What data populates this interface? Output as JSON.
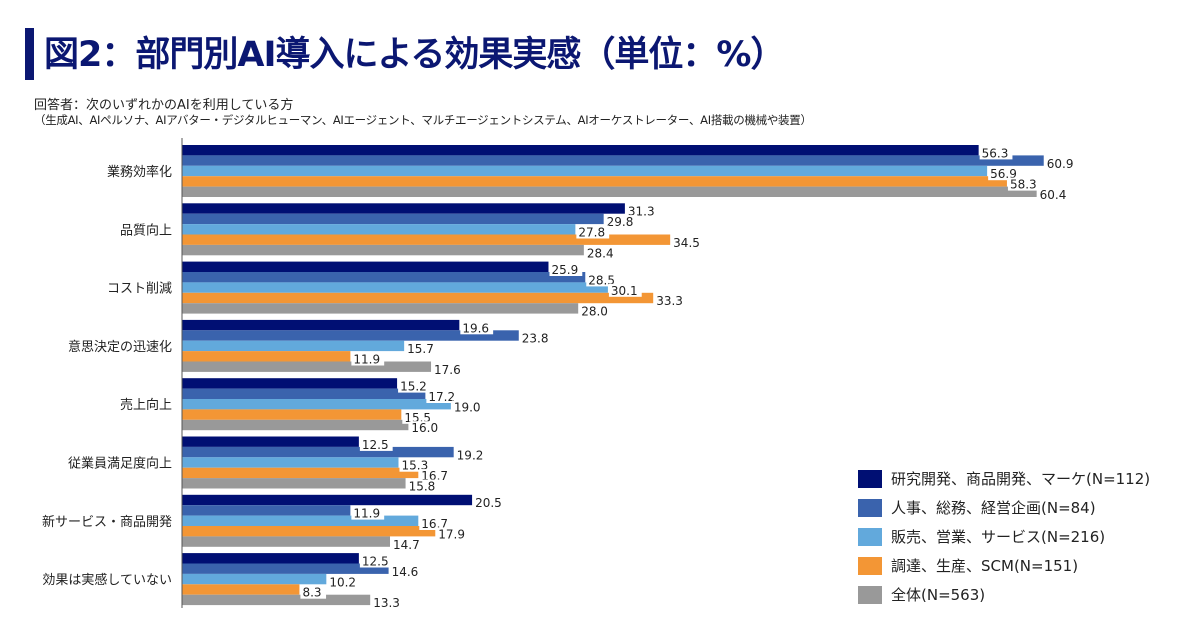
{
  "header": {
    "title": "図2：部門別AI導入による効果実感（単位：%）",
    "respondent": "回答者：次のいずれかのAIを利用している方",
    "respondent_detail": "（生成AI、AIペルソナ、AIアバター・デジタルヒューマン、AIエージェント、マルチエージェントシステム、AIオーケストレーター、AI搭載の機械や装置）"
  },
  "chart_data": {
    "type": "bar",
    "orientation": "horizontal",
    "title": "図2：部門別AI導入による効果実感（単位：%）",
    "xlabel": "",
    "ylabel": "",
    "xlim": [
      0,
      70
    ],
    "grid": false,
    "legend_position": "bottom-right",
    "categories": [
      "業務効率化",
      "品質向上",
      "コスト削減",
      "意思決定の迅速化",
      "売上向上",
      "従業員満足度向上",
      "新サービス・商品開発",
      "効果は実感していない"
    ],
    "series": [
      {
        "name": "研究開発、商品開発、マーケ(N=112)",
        "color": "#000f73",
        "values": [
          56.3,
          31.3,
          25.9,
          19.6,
          15.2,
          12.5,
          20.5,
          12.5
        ]
      },
      {
        "name": "人事、総務、経営企画(N=84)",
        "color": "#3a63ad",
        "values": [
          60.9,
          29.8,
          28.5,
          23.8,
          17.2,
          19.2,
          11.9,
          14.6
        ]
      },
      {
        "name": "販売、営業、サービス(N=216)",
        "color": "#62a9dc",
        "values": [
          56.9,
          27.8,
          30.1,
          15.7,
          19.0,
          15.3,
          16.7,
          10.2
        ]
      },
      {
        "name": "調達、生産、SCM(N=151)",
        "color": "#f39635",
        "values": [
          58.3,
          34.5,
          33.3,
          11.9,
          15.5,
          16.7,
          17.9,
          8.3
        ]
      },
      {
        "name": "全体(N=563)",
        "color": "#999999",
        "values": [
          60.4,
          28.4,
          28.0,
          17.6,
          16.0,
          15.8,
          14.7,
          13.3
        ]
      }
    ]
  }
}
